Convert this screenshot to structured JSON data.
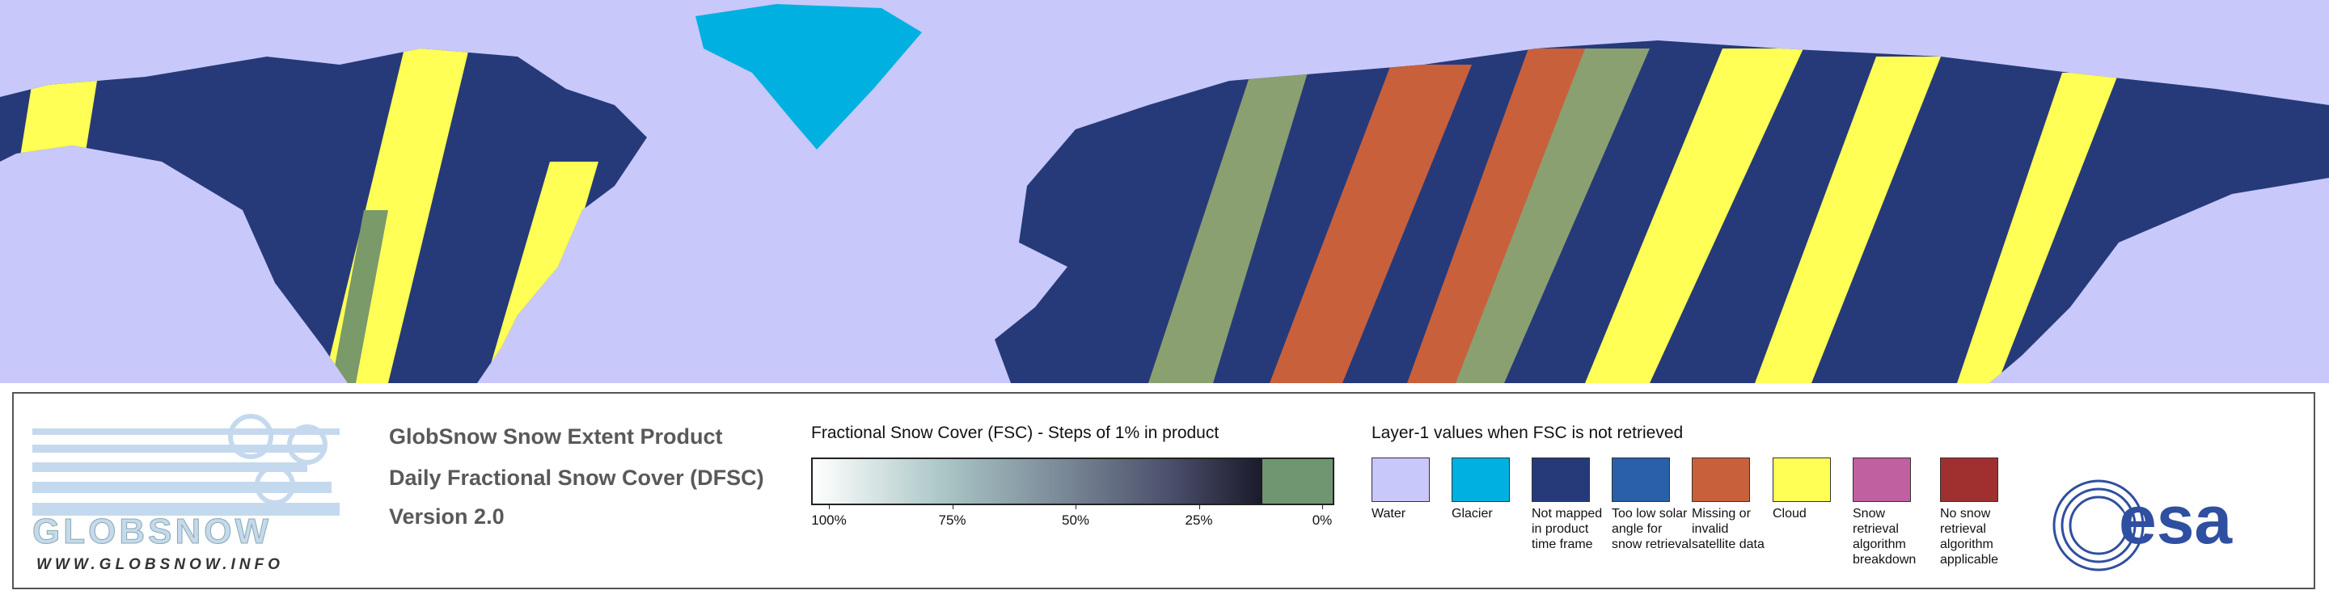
{
  "logo": {
    "name": "GLOBSNOW",
    "url": "WWW.GLOBSNOW.INFO"
  },
  "product": {
    "title": "GlobSnow Snow Extent Product",
    "subtitle": "Daily Fractional Snow Cover (DFSC)",
    "version": "Version 2.0"
  },
  "fsc_legend": {
    "title": "Fractional Snow Cover (FSC) - Steps of 1% in product",
    "ticks": [
      {
        "value": 100,
        "label": "100%"
      },
      {
        "value": 75,
        "label": "75%"
      },
      {
        "value": 50,
        "label": "50%"
      },
      {
        "value": 25,
        "label": "25%"
      },
      {
        "value": 0,
        "label": "0%"
      }
    ]
  },
  "layer1_legend": {
    "title": "Layer-1 values when FSC is not retrieved",
    "items": [
      {
        "label": "Water",
        "color": "#c8c8fa"
      },
      {
        "label": "Glacier",
        "color": "#00b0e0"
      },
      {
        "label": "Not mapped in product time frame",
        "color": "#263a7a"
      },
      {
        "label": "Too low solar angle for snow retrieval",
        "color": "#2a5faa"
      },
      {
        "label": "Missing or invalid satellite data",
        "color": "#c8603c"
      },
      {
        "label": "Cloud",
        "color": "#ffff55"
      },
      {
        "label": "Snow retrieval algorithm breakdown",
        "color": "#c060a0"
      },
      {
        "label": "No snow retrieval algorithm applicable",
        "color": "#a03030"
      }
    ]
  },
  "esa": "esa"
}
